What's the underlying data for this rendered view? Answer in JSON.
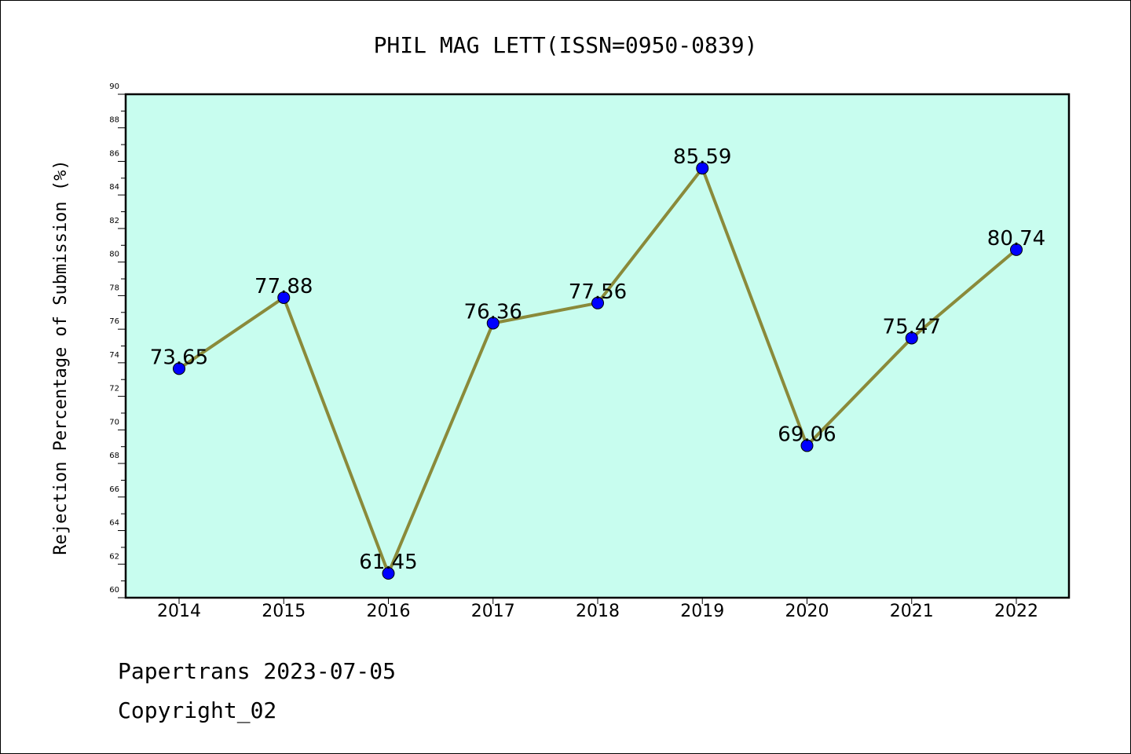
{
  "chart_data": {
    "type": "line",
    "title": "PHIL MAG LETT(ISSN=0950-0839)",
    "xlabel": "",
    "ylabel": "Rejection Percentage of Submission (%)",
    "categories": [
      "2014",
      "2015",
      "2016",
      "2017",
      "2018",
      "2019",
      "2020",
      "2021",
      "2022"
    ],
    "series": [
      {
        "values": [
          73.65,
          77.88,
          61.45,
          76.36,
          77.56,
          85.59,
          69.06,
          75.47,
          80.74
        ],
        "labels": [
          "73.65",
          "77.88",
          "61.45",
          "76.36",
          "77.56",
          "85.59",
          "69.06",
          "75.47",
          "80.74"
        ]
      }
    ],
    "ylim": [
      60,
      90
    ],
    "yticks": [
      "60",
      "62",
      "64",
      "66",
      "68",
      "70",
      "72",
      "74",
      "76",
      "78",
      "80",
      "82",
      "84",
      "86",
      "88",
      "90"
    ],
    "grid": false,
    "colors": {
      "plot_background": "#c8fdef",
      "line": "#8a8a3a",
      "marker": "#0000ff"
    }
  },
  "footer": {
    "line1": "Papertrans 2023-07-05",
    "line2": "Copyright_02"
  }
}
